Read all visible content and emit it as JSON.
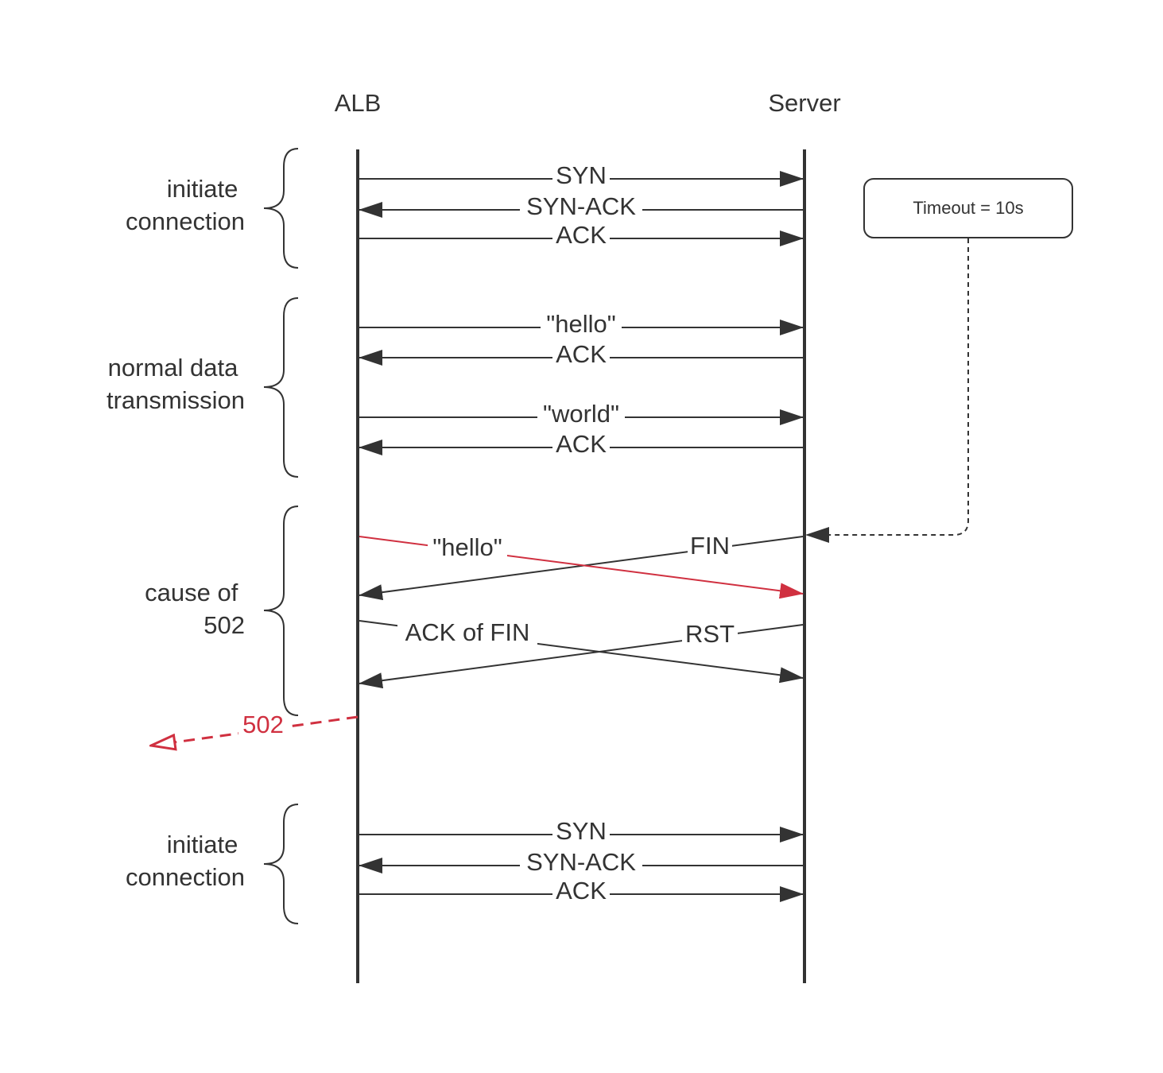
{
  "participants": {
    "left": "ALB",
    "right": "Server"
  },
  "phases": {
    "initiate_1": [
      "initiate",
      "connection"
    ],
    "normal": [
      "normal data",
      "transmission"
    ],
    "cause": [
      "cause of",
      "502"
    ],
    "initiate_2": [
      "initiate",
      "connection"
    ]
  },
  "messages": {
    "m1": "SYN",
    "m2": "SYN-ACK",
    "m3": "ACK",
    "m4": "\"hello\"",
    "m5": "ACK",
    "m6": "\"world\"",
    "m7": "ACK",
    "m8": "\"hello\"",
    "m9": "FIN",
    "m10": "ACK of FIN",
    "m11": "RST",
    "m12": "502",
    "m13": "SYN",
    "m14": "SYN-ACK",
    "m15": "ACK"
  },
  "note": {
    "text": "Timeout = 10s"
  },
  "colors": {
    "line": "#333333",
    "error": "#d03040",
    "note_border": "#333333",
    "background": "#ffffff"
  }
}
